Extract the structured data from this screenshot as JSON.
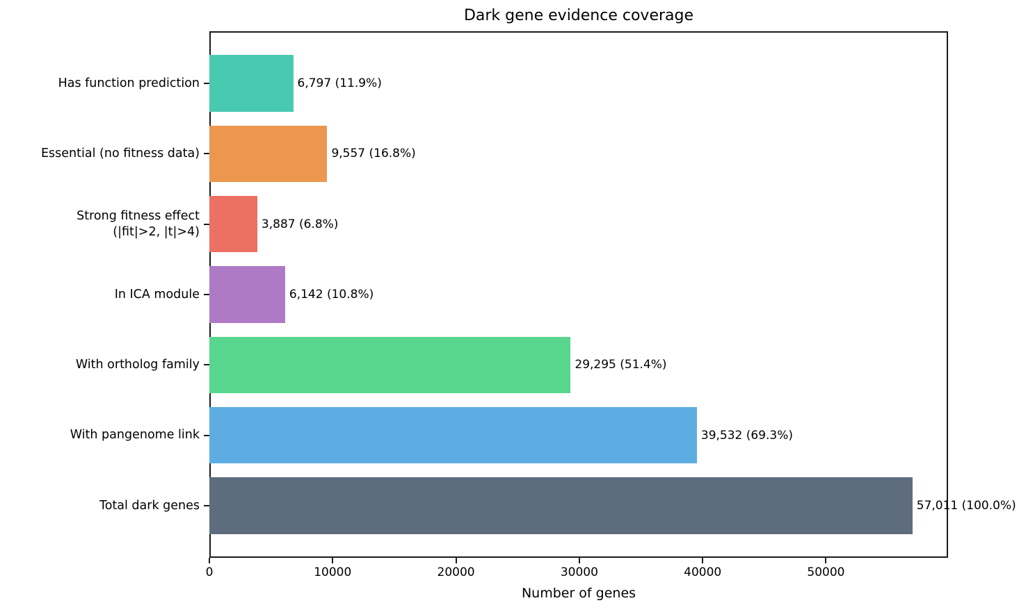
{
  "chart_data": {
    "type": "bar",
    "orientation": "horizontal",
    "title": "Dark gene evidence coverage",
    "xlabel": "Number of genes",
    "ylabel": "",
    "xlim": [
      0,
      59900
    ],
    "x_ticks": [
      0,
      10000,
      20000,
      30000,
      40000,
      50000
    ],
    "grid": false,
    "legend": false,
    "categories": [
      "Has function prediction",
      "Essential (no fitness data)",
      "Strong fitness effect\n(|fit|>2, |t|>4)",
      "In ICA module",
      "With ortholog family",
      "With pangenome link",
      "Total dark genes"
    ],
    "values": [
      6797,
      9557,
      3887,
      6142,
      29295,
      39532,
      57011
    ],
    "percent_of_total": [
      11.9,
      16.8,
      6.8,
      10.8,
      51.4,
      69.3,
      100.0
    ],
    "bar_labels": [
      "6,797 (11.9%)",
      "9,557 (16.8%)",
      "3,887 (6.8%)",
      "6,142 (10.8%)",
      "29,295 (51.4%)",
      "39,532 (69.3%)",
      "57,011 (100.0%)"
    ],
    "colors": [
      "#48c9b0",
      "#eb984e",
      "#ec7063",
      "#af7ac5",
      "#58d68d",
      "#5dade2",
      "#5d6d7e"
    ]
  }
}
